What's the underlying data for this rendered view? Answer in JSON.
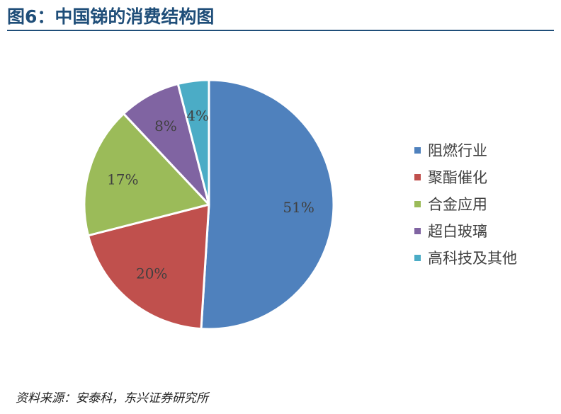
{
  "title": "图6：中国锑的消费结构图",
  "source": "资料来源：安泰科，东兴证券研究所",
  "chart_data": {
    "type": "pie",
    "categories": [
      "阻燃行业",
      "聚酯催化",
      "合金应用",
      "超白玻璃",
      "高科技及其他"
    ],
    "values": [
      51,
      20,
      17,
      8,
      4
    ],
    "data_labels": [
      "51%",
      "20%",
      "17%",
      "8%",
      "4%"
    ],
    "colors": [
      "#4f81bd",
      "#c0504d",
      "#9bbb59",
      "#8064a2",
      "#4bacc6"
    ],
    "start_angle_deg": 0,
    "direction": "clockwise",
    "legend_position": "right"
  }
}
